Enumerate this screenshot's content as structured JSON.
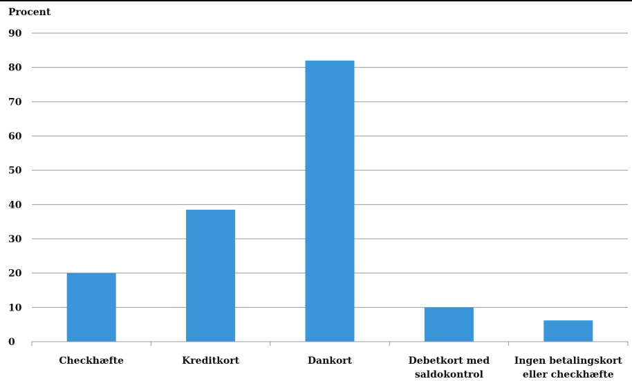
{
  "chart_data": {
    "type": "bar",
    "ylabel": "Procent",
    "xlabel": "",
    "categories": [
      [
        "Checkhæfte"
      ],
      [
        "Kreditkort"
      ],
      [
        "Dankort"
      ],
      [
        "Debetkort med",
        "saldokontrol"
      ],
      [
        "Ingen betalingskort",
        "eller checkhæfte"
      ]
    ],
    "series": [
      {
        "values": [
          20,
          38.5,
          82,
          10,
          6.2
        ],
        "color": "#3a96d9"
      }
    ],
    "ylim": [
      0,
      90
    ],
    "yticks": [
      "0",
      "10",
      "20",
      "30",
      "40",
      "50",
      "60",
      "70",
      "80",
      "90"
    ],
    "grid": true,
    "legend": "none"
  }
}
